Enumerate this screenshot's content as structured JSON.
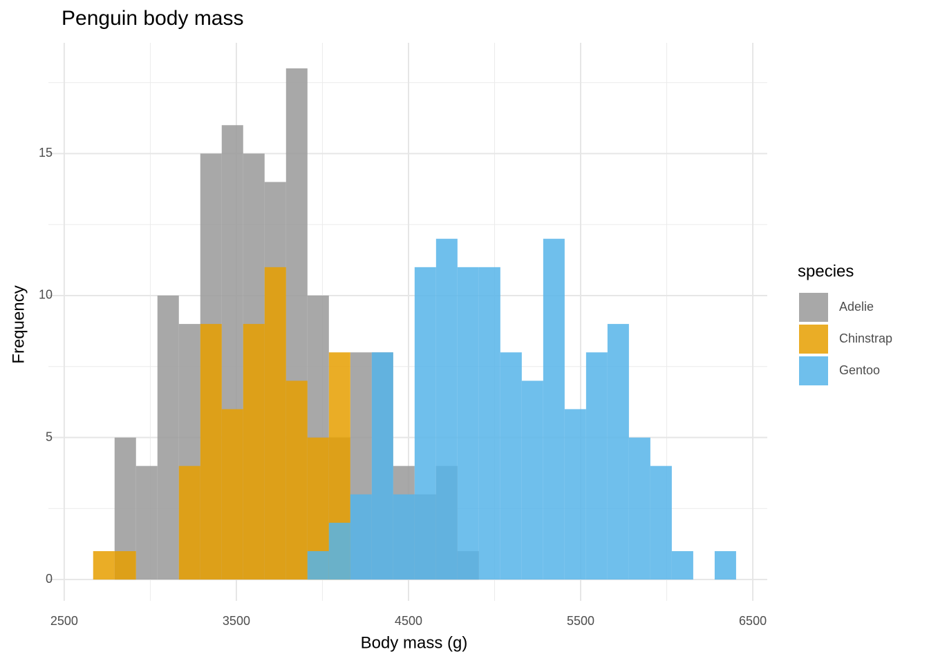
{
  "chart_data": {
    "type": "histogram",
    "title": "Penguin body mass",
    "x_label": "Body mass (g)",
    "y_label": "Frequency",
    "legend_title": "species",
    "bins": [
      2668,
      2792.5,
      2917,
      3041.5,
      3166,
      3290.5,
      3415,
      3539.5,
      3664,
      3788.5,
      3913,
      4037.5,
      4162,
      4286.5,
      4411,
      4535.5,
      4660,
      4784.5,
      4909,
      5033.5,
      5158,
      5282.5,
      5407,
      5531.5,
      5656,
      5780.5,
      5905,
      6029.5,
      6154,
      6278.5,
      6403
    ],
    "series": [
      {
        "name": "Adelie",
        "color": "#999999",
        "values": [
          0,
          5,
          4,
          10,
          9,
          15,
          16,
          15,
          14,
          18,
          10,
          5,
          8,
          8,
          4,
          3,
          4,
          1,
          0,
          0,
          0,
          0,
          0,
          0,
          0,
          0,
          0,
          0,
          0,
          0
        ]
      },
      {
        "name": "Chinstrap",
        "color": "#E69F00",
        "values": [
          1,
          1,
          0,
          0,
          4,
          9,
          6,
          9,
          11,
          7,
          5,
          8,
          0,
          0,
          0,
          0,
          0,
          0,
          0,
          0,
          0,
          0,
          0,
          0,
          0,
          0,
          0,
          0,
          0,
          0
        ]
      },
      {
        "name": "Gentoo",
        "color": "#56B4E9",
        "values": [
          0,
          0,
          0,
          0,
          0,
          0,
          0,
          0,
          0,
          0,
          1,
          2,
          3,
          8,
          3,
          11,
          12,
          11,
          11,
          8,
          7,
          12,
          6,
          8,
          9,
          5,
          4,
          1,
          0,
          1
        ]
      }
    ],
    "xlim": [
      2408,
      6584
    ],
    "ylim": [
      -0.75,
      18.9
    ],
    "xticks": [
      2500,
      3500,
      4500,
      5500,
      6500
    ],
    "yticks": [
      0,
      5,
      10,
      15
    ],
    "grid": true
  }
}
